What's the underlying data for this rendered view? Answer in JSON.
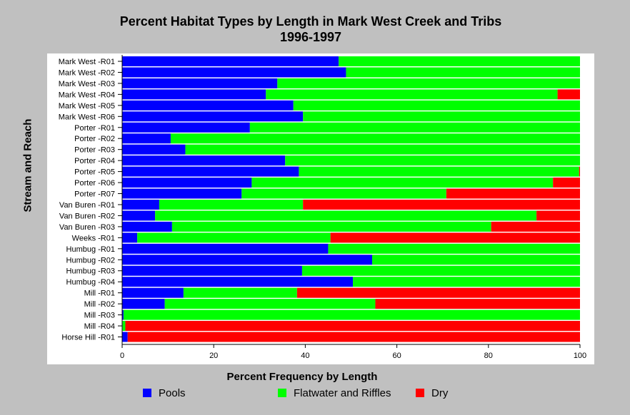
{
  "chart_data": {
    "type": "bar",
    "orientation": "horizontal",
    "stacked": true,
    "title": "Percent Habitat Types by Length in Mark West Creek and Tribs",
    "subtitle": "1996-1997",
    "xlabel": "Percent Frequency by Length",
    "ylabel": "Stream and Reach",
    "xlim": [
      0,
      100
    ],
    "xticks": [
      0,
      20,
      40,
      60,
      80,
      100
    ],
    "categories": [
      "Mark West -R01",
      "Mark West -R02",
      "Mark West -R03",
      "Mark West -R04",
      "Mark West -R05",
      "Mark West -R06",
      "Porter -R01",
      "Porter -R02",
      "Porter -R03",
      "Porter -R04",
      "Porter -R05",
      "Porter -R06",
      "Porter -R07",
      "Van Buren -R01",
      "Van Buren -R02",
      "Van Buren -R03",
      "Weeks -R01",
      "Humbug -R01",
      "Humbug -R02",
      "Humbug -R03",
      "Humbug -R04",
      "Mill -R01",
      "Mill -R02",
      "Mill -R03",
      "Mill -R04",
      "Horse Hill -R01"
    ],
    "series": [
      {
        "name": "Pools",
        "color": "#0000ff",
        "values": [
          47.3,
          48.9,
          33.9,
          31.4,
          37.4,
          39.5,
          27.9,
          10.6,
          13.8,
          35.6,
          38.6,
          28.3,
          26.1,
          8.1,
          7.2,
          10.9,
          3.3,
          45.0,
          54.6,
          39.3,
          50.4,
          13.4,
          9.3,
          0.3,
          0.1,
          1.2
        ]
      },
      {
        "name": "Flatwater and Riffles",
        "color": "#00ff00",
        "values": [
          52.7,
          51.1,
          66.1,
          63.7,
          62.6,
          60.5,
          72.1,
          89.4,
          86.2,
          64.4,
          61.2,
          65.8,
          44.7,
          31.4,
          83.3,
          69.7,
          42.2,
          55.0,
          45.4,
          60.7,
          49.6,
          24.8,
          46.0,
          99.7,
          0.6,
          0.0
        ]
      },
      {
        "name": "Dry",
        "color": "#ff0000",
        "values": [
          0,
          0,
          0,
          4.9,
          0,
          0,
          0,
          0,
          0,
          0,
          0.2,
          5.9,
          29.2,
          60.5,
          9.5,
          19.4,
          54.5,
          0,
          0,
          0,
          0,
          61.8,
          44.7,
          0,
          99.3,
          98.8
        ]
      }
    ],
    "legend_position": "bottom",
    "grid": false
  }
}
